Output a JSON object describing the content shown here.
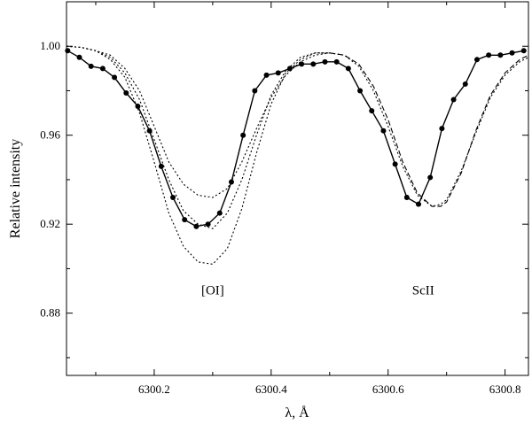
{
  "chart_data": {
    "type": "line",
    "title": "",
    "xlabel": "λ, Å",
    "ylabel": "Relative intensity",
    "xlim": [
      6300.05,
      6300.84
    ],
    "ylim": [
      0.852,
      1.02
    ],
    "x_ticks": [
      6300.2,
      6300.4,
      6300.6,
      6300.8
    ],
    "x_tick_labels": [
      "6300.2",
      "6300.4",
      "6300.6",
      "6300.8"
    ],
    "y_ticks": [
      0.88,
      0.92,
      0.96,
      1.0
    ],
    "y_tick_labels": [
      "0.88",
      "0.92",
      "0.96",
      "1.00"
    ],
    "grid": false,
    "annotations": [
      {
        "text": "[OI]",
        "x": 6300.3,
        "y": 0.8885
      },
      {
        "text": "ScII",
        "x": 6300.66,
        "y": 0.8885
      }
    ],
    "series": [
      {
        "style": "solid-markers",
        "color": "#000000",
        "x": [
          6300.052,
          6300.072,
          6300.092,
          6300.112,
          6300.132,
          6300.152,
          6300.172,
          6300.192,
          6300.212,
          6300.232,
          6300.252,
          6300.272,
          6300.292,
          6300.312,
          6300.332,
          6300.352,
          6300.372,
          6300.392,
          6300.412,
          6300.432,
          6300.452,
          6300.472,
          6300.492,
          6300.512,
          6300.532,
          6300.552,
          6300.572,
          6300.592,
          6300.612,
          6300.632,
          6300.652,
          6300.672,
          6300.692,
          6300.712,
          6300.732,
          6300.752,
          6300.772,
          6300.792,
          6300.812,
          6300.832
        ],
        "y": [
          0.998,
          0.995,
          0.991,
          0.99,
          0.986,
          0.979,
          0.973,
          0.962,
          0.946,
          0.932,
          0.922,
          0.919,
          0.92,
          0.925,
          0.939,
          0.96,
          0.98,
          0.987,
          0.988,
          0.99,
          0.992,
          0.992,
          0.993,
          0.993,
          0.99,
          0.98,
          0.971,
          0.962,
          0.947,
          0.932,
          0.929,
          0.941,
          0.963,
          0.976,
          0.983,
          0.994,
          0.996,
          0.996,
          0.997,
          0.998
        ]
      },
      {
        "style": "dotted",
        "color": "#000000",
        "x": [
          6300.05,
          6300.075,
          6300.1,
          6300.125,
          6300.15,
          6300.175,
          6300.2,
          6300.225,
          6300.25,
          6300.275,
          6300.3,
          6300.325,
          6300.35,
          6300.375,
          6300.4,
          6300.425,
          6300.45,
          6300.475,
          6300.5
        ],
        "y": [
          1.0,
          0.9995,
          0.998,
          0.995,
          0.988,
          0.976,
          0.958,
          0.94,
          0.926,
          0.92,
          0.918,
          0.925,
          0.94,
          0.96,
          0.978,
          0.989,
          0.995,
          0.997,
          0.997
        ]
      },
      {
        "style": "dotted",
        "color": "#000000",
        "x": [
          6300.05,
          6300.075,
          6300.1,
          6300.125,
          6300.15,
          6300.175,
          6300.2,
          6300.225,
          6300.25,
          6300.275,
          6300.3,
          6300.325,
          6300.35,
          6300.375,
          6300.4,
          6300.425,
          6300.45,
          6300.475,
          6300.5
        ],
        "y": [
          1.0,
          0.9995,
          0.998,
          0.996,
          0.99,
          0.98,
          0.964,
          0.948,
          0.938,
          0.933,
          0.932,
          0.936,
          0.948,
          0.963,
          0.977,
          0.987,
          0.993,
          0.996,
          0.997
        ]
      },
      {
        "style": "dotted",
        "color": "#000000",
        "x": [
          6300.05,
          6300.075,
          6300.1,
          6300.125,
          6300.15,
          6300.175,
          6300.2,
          6300.225,
          6300.25,
          6300.275,
          6300.3,
          6300.325,
          6300.35,
          6300.375,
          6300.4,
          6300.425,
          6300.45,
          6300.475,
          6300.5
        ],
        "y": [
          1.0,
          0.9995,
          0.998,
          0.994,
          0.986,
          0.97,
          0.948,
          0.925,
          0.91,
          0.903,
          0.902,
          0.909,
          0.927,
          0.952,
          0.974,
          0.988,
          0.994,
          0.997,
          0.997
        ]
      },
      {
        "style": "dashed",
        "color": "#000000",
        "x": [
          6300.5,
          6300.525,
          6300.55,
          6300.575,
          6300.6,
          6300.625,
          6300.65,
          6300.675,
          6300.69,
          6300.7,
          6300.725,
          6300.75,
          6300.775,
          6300.8,
          6300.825,
          6300.84
        ],
        "y": [
          0.997,
          0.996,
          0.992,
          0.982,
          0.967,
          0.948,
          0.934,
          0.928,
          0.928,
          0.93,
          0.943,
          0.962,
          0.978,
          0.988,
          0.994,
          0.996
        ]
      },
      {
        "style": "dotted",
        "color": "#000000",
        "x": [
          6300.5,
          6300.525,
          6300.55,
          6300.575,
          6300.6,
          6300.625,
          6300.65,
          6300.675,
          6300.69,
          6300.7,
          6300.725,
          6300.75,
          6300.775,
          6300.8,
          6300.825,
          6300.84
        ],
        "y": [
          0.997,
          0.996,
          0.991,
          0.98,
          0.964,
          0.946,
          0.933,
          0.928,
          0.929,
          0.931,
          0.944,
          0.961,
          0.977,
          0.987,
          0.993,
          0.995
        ]
      }
    ]
  }
}
